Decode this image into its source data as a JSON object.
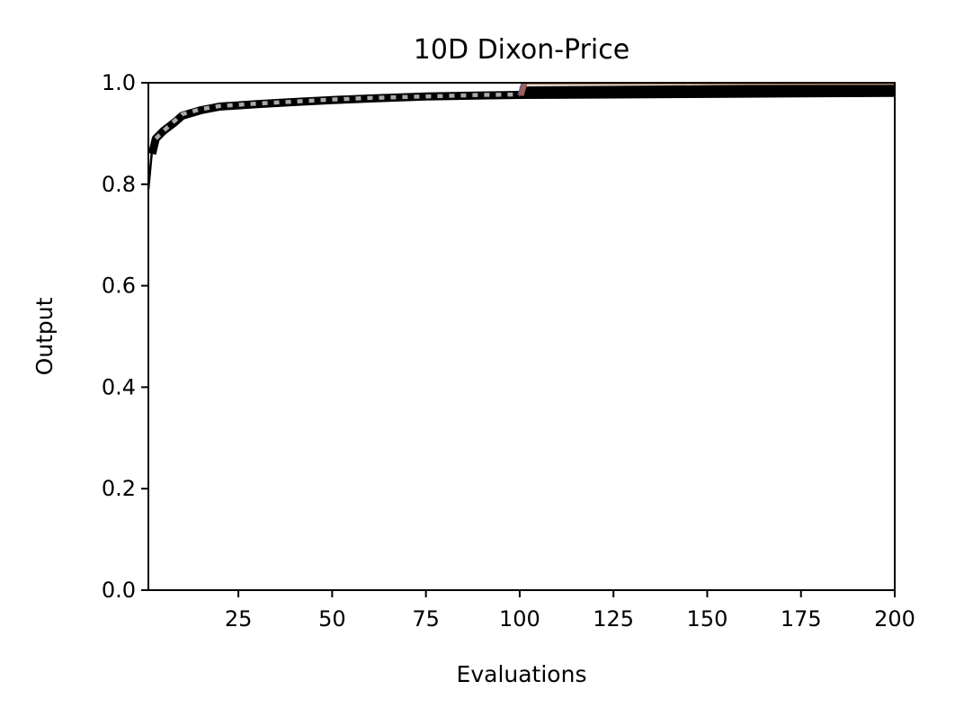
{
  "chart_data": {
    "type": "line",
    "title": "10D Dixon-Price",
    "xlabel": "Evaluations",
    "ylabel": "Output",
    "xlim": [
      1,
      200
    ],
    "ylim": [
      0.0,
      1.0
    ],
    "xticks": [
      25,
      50,
      75,
      100,
      125,
      150,
      175,
      200
    ],
    "yticks": [
      0.0,
      0.2,
      0.4,
      0.6,
      0.8,
      1.0
    ],
    "xtick_labels": [
      "25",
      "50",
      "75",
      "100",
      "125",
      "150",
      "175",
      "200"
    ],
    "ytick_labels": [
      "0.0",
      "0.2",
      "0.4",
      "0.6",
      "0.8",
      "1.0"
    ],
    "grid": false,
    "series": [
      {
        "style": "thin-solid",
        "color": "#000000",
        "x": [
          1,
          2,
          3,
          5,
          8,
          10,
          15,
          20,
          30,
          40,
          50,
          60,
          75,
          90,
          100
        ],
        "y": [
          0.79,
          0.87,
          0.895,
          0.91,
          0.925,
          0.935,
          0.945,
          0.952,
          0.958,
          0.962,
          0.966,
          0.969,
          0.973,
          0.976,
          0.978
        ]
      },
      {
        "style": "thick-solid",
        "color": "#000000",
        "x": [
          2,
          3,
          5,
          8,
          10,
          15,
          20,
          30,
          40,
          50,
          60,
          75,
          90,
          100,
          125,
          150,
          175,
          200
        ],
        "y": [
          0.86,
          0.89,
          0.905,
          0.922,
          0.935,
          0.946,
          0.953,
          0.958,
          0.962,
          0.966,
          0.969,
          0.973,
          0.975,
          0.976,
          0.977,
          0.978,
          0.979,
          0.98
        ]
      },
      {
        "style": "thick-solid",
        "color": "#000000",
        "x": [
          100,
          125,
          150,
          175,
          200
        ],
        "y": [
          0.985,
          0.986,
          0.987,
          0.988,
          0.989
        ]
      },
      {
        "style": "thin-solid",
        "color": "#b08a6e",
        "x": [
          101,
          200
        ],
        "y": [
          0.998,
          0.998
        ]
      },
      {
        "style": "dotted",
        "color": "#a9a9a9",
        "x": [
          3,
          5,
          8,
          10,
          15,
          20,
          30,
          40,
          50,
          60,
          75,
          90,
          100
        ],
        "y": [
          0.89,
          0.905,
          0.925,
          0.938,
          0.948,
          0.954,
          0.959,
          0.963,
          0.967,
          0.97,
          0.973,
          0.976,
          0.977
        ]
      },
      {
        "style": "short-thick",
        "color": "#7a5c8a",
        "x": [
          100,
          101
        ],
        "y": [
          0.975,
          1.0
        ]
      },
      {
        "style": "short-thick",
        "color": "#a0605a",
        "x": [
          100.5,
          101.5
        ],
        "y": [
          0.975,
          1.0
        ]
      }
    ]
  }
}
